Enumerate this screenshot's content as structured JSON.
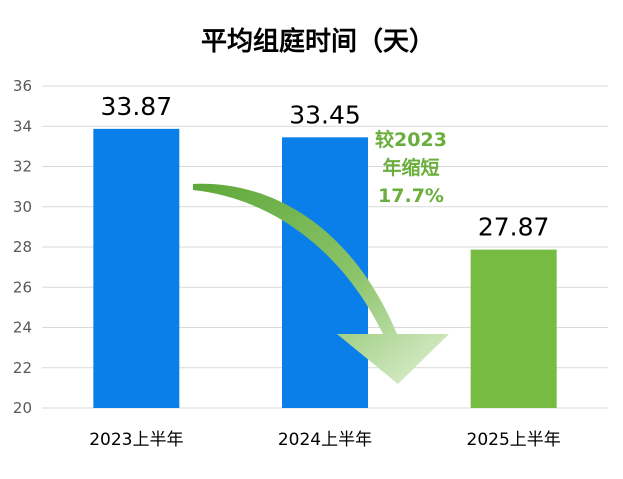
{
  "chart_data": {
    "type": "bar",
    "title": "平均组庭时间（天）",
    "categories": [
      "2023上半年",
      "2024上半年",
      "2025上半年"
    ],
    "values": [
      33.87,
      33.45,
      27.87
    ],
    "value_labels": [
      "33.87",
      "33.45",
      "27.87"
    ],
    "bar_colors": [
      "#0A7FEA",
      "#0A7FEA",
      "#76BC43"
    ],
    "ylim": [
      20,
      36
    ],
    "yticks": [
      20,
      22,
      24,
      26,
      28,
      30,
      32,
      34,
      36
    ],
    "grid": true,
    "annotation": {
      "lines": [
        "较2023",
        "年缩短",
        "17.7%"
      ],
      "color": "#6AAE3C"
    }
  }
}
